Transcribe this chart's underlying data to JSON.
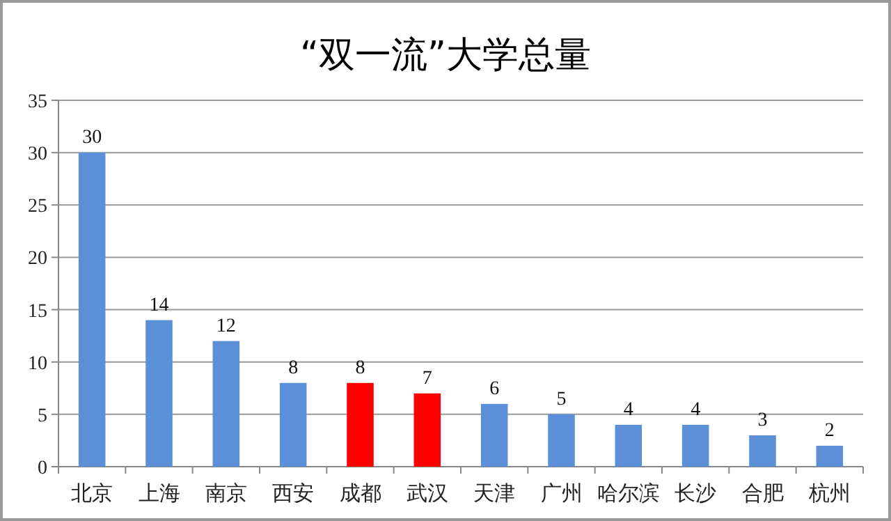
{
  "chart_data": {
    "type": "bar",
    "title": "“双一流”大学总量",
    "categories": [
      "北京",
      "上海",
      "南京",
      "西安",
      "成都",
      "武汉",
      "天津",
      "广州",
      "哈尔滨",
      "长沙",
      "合肥",
      "杭州"
    ],
    "values": [
      30,
      14,
      12,
      8,
      8,
      7,
      6,
      5,
      4,
      4,
      3,
      2
    ],
    "colors": [
      "#5b8fd8",
      "#5b8fd8",
      "#5b8fd8",
      "#5b8fd8",
      "#ff0000",
      "#ff0000",
      "#5b8fd8",
      "#5b8fd8",
      "#5b8fd8",
      "#5b8fd8",
      "#5b8fd8",
      "#5b8fd8"
    ],
    "ylim": [
      0,
      35
    ],
    "yticks": [
      0,
      5,
      10,
      15,
      20,
      25,
      30,
      35
    ],
    "grid": "y",
    "data_labels": true
  }
}
